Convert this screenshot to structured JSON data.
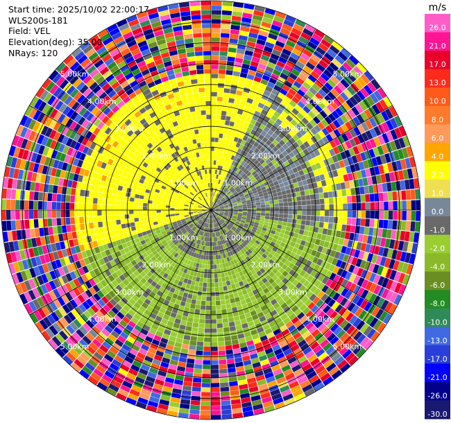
{
  "header": {
    "start_time": "Start time: 2025/10/02 22:00:17",
    "instrument": "WLS200s-181",
    "field": "Field: VEL",
    "elevation": "Elevation(deg): 35.00",
    "nrays": "NRays: 120"
  },
  "chart_data": {
    "type": "ppi",
    "field": "VEL",
    "units": "m/s",
    "n_rays": 120,
    "range_rings_km": [
      1.0,
      2.0,
      3.0,
      4.0,
      5.0
    ],
    "range_ring_labels": [
      "1.00km",
      "2.00km",
      "3.00km",
      "4.00km",
      "5.00km"
    ],
    "max_range_km": 5.0,
    "grid_spokes_deg": [
      0,
      30,
      60,
      90,
      120,
      150,
      180,
      210,
      240,
      270,
      300,
      330
    ],
    "colorbar": {
      "label": "m/s",
      "vmin": -30.0,
      "vmax": 30.0,
      "ticks": [
        "26.0",
        "21.0",
        "17.0",
        "13.0",
        "10.0",
        "8.0",
        "6.0",
        "4.0",
        "2.0",
        "1.0",
        "0.0",
        "-1.0",
        "-2.0",
        "-4.0",
        "-6.0",
        "-8.0",
        "-10.0",
        "-13.0",
        "-17.0",
        "-21.0",
        "-26.0",
        "-30.0"
      ],
      "bins": [
        {
          "lo": 26,
          "hi": 30,
          "color": "#ff5cc8"
        },
        {
          "lo": 21,
          "hi": 26,
          "color": "#ff1493"
        },
        {
          "lo": 17,
          "hi": 21,
          "color": "#e8002a"
        },
        {
          "lo": 13,
          "hi": 17,
          "color": "#ff2a1a"
        },
        {
          "lo": 10,
          "hi": 13,
          "color": "#ff5a1a"
        },
        {
          "lo": 8,
          "hi": 10,
          "color": "#ff7a2a"
        },
        {
          "lo": 6,
          "hi": 8,
          "color": "#ff9a5a"
        },
        {
          "lo": 4,
          "hi": 6,
          "color": "#ffa500"
        },
        {
          "lo": 2,
          "hi": 4,
          "color": "#ffff00"
        },
        {
          "lo": 1,
          "hi": 2,
          "color": "#f0e050"
        },
        {
          "lo": 0,
          "hi": 1,
          "color": "#778899"
        },
        {
          "lo": -1,
          "hi": 0,
          "color": "#696969"
        },
        {
          "lo": -2,
          "hi": -1,
          "color": "#9acd32"
        },
        {
          "lo": -4,
          "hi": -2,
          "color": "#8aba2a"
        },
        {
          "lo": -6,
          "hi": -4,
          "color": "#6b8e23"
        },
        {
          "lo": -8,
          "hi": -6,
          "color": "#228b22"
        },
        {
          "lo": -10,
          "hi": -8,
          "color": "#2e8b57"
        },
        {
          "lo": -13,
          "hi": -10,
          "color": "#4169e1"
        },
        {
          "lo": -17,
          "hi": -13,
          "color": "#2a3ed8"
        },
        {
          "lo": -21,
          "hi": -17,
          "color": "#0000ff"
        },
        {
          "lo": -26,
          "hi": -21,
          "color": "#00008b"
        },
        {
          "lo": -30,
          "hi": -26,
          "color": "#191970"
        }
      ]
    }
  }
}
